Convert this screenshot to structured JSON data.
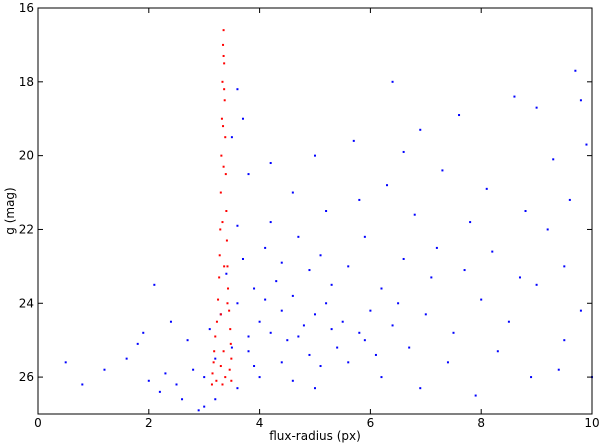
{
  "chart_data": {
    "type": "scatter",
    "x_label": "flux-radius (px)",
    "y_label": "g (mag)",
    "xlim": [
      0,
      10
    ],
    "xticks": [
      0,
      2,
      4,
      6,
      8,
      10
    ],
    "ylim": [
      27,
      16
    ],
    "yticks": [
      16,
      18,
      20,
      22,
      24,
      26
    ],
    "grid": false,
    "series": [
      {
        "color": "#0000ff",
        "x": [
          2.8,
          3.0,
          3.2,
          3.5,
          3.8,
          4.0,
          4.2,
          4.5,
          4.8,
          5.0,
          3.6,
          3.9,
          4.3,
          4.6,
          5.2,
          5.5,
          5.8,
          6.0,
          3.4,
          3.7,
          4.1,
          4.4,
          4.9,
          5.3,
          5.6,
          6.2,
          6.5,
          2.5,
          2.2,
          2.0,
          2.6,
          3.0,
          3.6,
          4.0,
          4.4,
          4.9,
          5.4,
          5.9,
          6.4,
          7.0,
          7.5,
          8.0,
          8.5,
          9.0,
          9.5,
          9.8,
          7.2,
          7.8,
          8.2,
          8.8,
          9.2,
          9.6,
          6.8,
          6.3,
          5.8,
          5.2,
          4.6,
          4.2,
          3.8,
          3.6,
          3.5,
          3.7,
          3.6,
          4.2,
          5.0,
          5.7,
          6.6,
          7.3,
          8.1,
          9.3,
          9.9,
          7.6,
          8.6,
          9.7,
          6.4,
          6.9,
          9.8,
          9.0,
          1.6,
          1.2,
          0.8,
          0.5,
          1.9,
          2.1,
          1.8,
          2.4,
          2.7,
          3.1,
          3.3,
          3.9,
          4.6,
          5.1,
          5.6,
          6.1,
          6.7,
          7.4,
          8.3,
          8.9,
          9.4,
          10.0,
          7.9,
          6.9,
          4.7,
          5.1,
          5.9,
          6.6,
          7.1,
          7.7,
          8.7,
          9.5,
          3.2,
          2.9,
          2.3,
          4.1,
          4.4,
          3.8,
          4.7,
          5.3,
          5.0,
          6.2
        ],
        "values": [
          25.8,
          26.0,
          25.5,
          25.2,
          24.9,
          24.5,
          24.8,
          25.0,
          24.6,
          24.3,
          24.0,
          23.6,
          23.4,
          23.8,
          24.0,
          24.5,
          24.8,
          24.2,
          23.2,
          22.8,
          22.5,
          22.9,
          23.1,
          23.5,
          23.0,
          23.6,
          24.0,
          26.2,
          26.4,
          26.1,
          26.6,
          26.8,
          26.3,
          26.0,
          25.6,
          25.4,
          25.2,
          25.0,
          24.6,
          24.3,
          24.8,
          23.9,
          24.5,
          23.5,
          25.0,
          24.2,
          22.5,
          21.8,
          22.6,
          21.5,
          22.0,
          21.2,
          21.6,
          20.8,
          21.2,
          21.5,
          21.0,
          21.8,
          20.5,
          21.9,
          19.5,
          19.0,
          18.2,
          20.2,
          20.0,
          19.6,
          19.9,
          20.4,
          20.9,
          20.1,
          19.7,
          18.9,
          18.4,
          17.7,
          18.0,
          19.3,
          18.5,
          18.7,
          25.5,
          25.8,
          26.2,
          25.6,
          24.8,
          23.5,
          25.1,
          24.5,
          25.0,
          24.7,
          24.3,
          25.7,
          26.1,
          25.7,
          25.6,
          25.4,
          25.2,
          25.6,
          25.3,
          26.0,
          25.8,
          26.0,
          26.5,
          26.3,
          22.2,
          22.7,
          22.2,
          22.8,
          23.3,
          23.1,
          23.3,
          23.0,
          26.6,
          26.9,
          25.9,
          23.9,
          24.2,
          25.3,
          24.9,
          24.7,
          26.3,
          26.0
        ]
      },
      {
        "color": "#ff0000",
        "x": [
          3.35,
          3.34,
          3.36,
          3.33,
          3.37,
          3.32,
          3.38,
          3.31,
          3.39,
          3.3,
          3.4,
          3.29,
          3.41,
          3.28,
          3.42,
          3.27,
          3.43,
          3.25,
          3.45,
          3.23,
          3.47,
          3.2,
          3.48,
          3.18,
          3.35,
          3.49,
          3.17,
          3.3,
          3.46,
          3.15,
          3.38,
          3.22,
          3.49,
          3.14,
          3.33,
          3.42,
          3.3,
          3.36,
          3.33,
          3.35,
          3.34,
          3.36,
          3.35
        ],
        "values": [
          16.6,
          17.0,
          17.5,
          18.0,
          18.5,
          19.0,
          19.5,
          20.0,
          20.5,
          21.0,
          21.5,
          22.0,
          22.3,
          22.7,
          23.0,
          23.3,
          23.6,
          23.9,
          24.2,
          24.5,
          24.7,
          24.9,
          25.1,
          25.3,
          25.3,
          25.5,
          25.6,
          25.7,
          25.8,
          25.9,
          26.0,
          26.1,
          26.1,
          26.2,
          26.2,
          24.0,
          24.3,
          23.0,
          21.8,
          20.3,
          19.2,
          18.2,
          17.3
        ]
      }
    ]
  }
}
